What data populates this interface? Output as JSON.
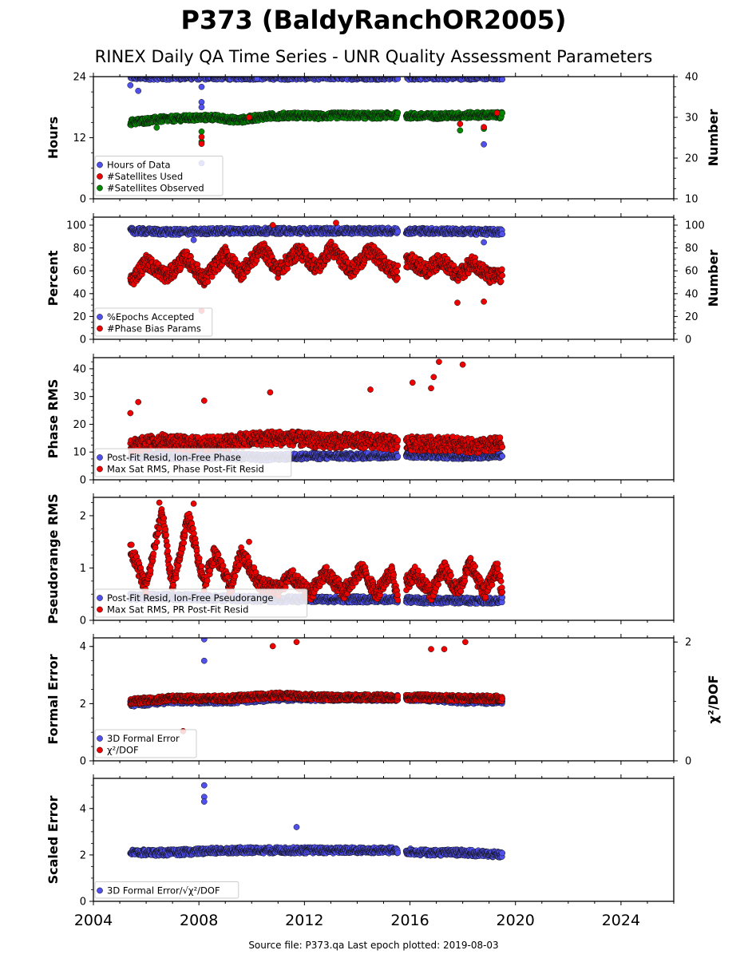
{
  "title": "P373 (BaldyRanchOR2005)",
  "subtitle": "RINEX Daily QA Time Series - UNR Quality Assessment Parameters",
  "footer": "Source file: P373.qa Last epoch plotted: 2019-08-03",
  "colors": {
    "blue": "#5050ee",
    "red": "#ee0000",
    "green": "#008800",
    "edge": "#111111"
  },
  "chart_data": [
    {
      "type": "scatter",
      "ylabel": "Hours",
      "ylabel_right": "Number",
      "ylim": [
        0,
        24
      ],
      "yticks": [
        "0",
        "12",
        "24"
      ],
      "ylim_right": [
        10,
        40
      ],
      "yticks_right": [
        "10",
        "20",
        "30",
        "40"
      ],
      "xlim": [
        2004,
        2026
      ],
      "legend": [
        "Hours of Data",
        "#Satellites Used",
        "#Satellites Observed"
      ],
      "legend_loc": "lower-left",
      "series": [
        {
          "name": "Hours of Data",
          "color": "blue",
          "axis": "left",
          "x": [
            2005.4,
            2007.5,
            2011.0,
            2014.0,
            2015.5,
            2016.5,
            2018.0,
            2019.5
          ],
          "y": [
            24,
            24,
            24,
            24,
            24,
            24,
            24,
            24
          ],
          "outliers": [
            [
              2005.4,
              22.3
            ],
            [
              2005.7,
              21.2
            ],
            [
              2008.1,
              22
            ],
            [
              2008.1,
              19
            ],
            [
              2008.1,
              18
            ],
            [
              2008.1,
              7
            ],
            [
              2010.2,
              23.6
            ],
            [
              2018.8,
              10.7
            ]
          ]
        },
        {
          "name": "#Satellites Observed",
          "color": "green",
          "axis": "right",
          "x": [
            2005.4,
            2006.5,
            2007.5,
            2008.5,
            2009.5,
            2010.5,
            2011.5,
            2012.5,
            2013.5,
            2014.5,
            2015.5,
            2016.5,
            2017.5,
            2018.5,
            2019.5
          ],
          "y": [
            28.8,
            29.5,
            29.8,
            30,
            29.3,
            30.2,
            30.5,
            30.3,
            30.5,
            30.4,
            30.5,
            30.3,
            30.4,
            30.6,
            30.5
          ],
          "outliers": [
            [
              2006.4,
              27.5
            ],
            [
              2008.1,
              26.5
            ],
            [
              2008.1,
              24
            ],
            [
              2017.9,
              26.8
            ],
            [
              2018.8,
              27.2
            ]
          ]
        },
        {
          "name": "#Satellites Used",
          "color": "red",
          "axis": "right",
          "x": [],
          "y": [],
          "outliers": [
            [
              2008.1,
              25.2
            ],
            [
              2008.1,
              23.5
            ],
            [
              2009.9,
              30
            ],
            [
              2017.9,
              28.4
            ],
            [
              2018.8,
              27.6
            ],
            [
              2019.3,
              31.1
            ]
          ]
        }
      ]
    },
    {
      "type": "scatter",
      "ylabel": "Percent",
      "ylabel_right": "Number",
      "ylim": [
        0,
        107
      ],
      "yticks": [
        "0",
        "20",
        "40",
        "60",
        "80",
        "100"
      ],
      "ylim_right": [
        0,
        107
      ],
      "yticks_right": [
        "0",
        "20",
        "40",
        "60",
        "80",
        "100"
      ],
      "xlim": [
        2004,
        2026
      ],
      "legend": [
        "%Epochs Accepted",
        "#Phase Bias Params"
      ],
      "legend_loc": "lower-left",
      "series": [
        {
          "name": "%Epochs Accepted",
          "color": "blue",
          "axis": "left",
          "x": [
            2005.4,
            2007,
            2009,
            2011,
            2013,
            2015.5,
            2016.5,
            2019.5
          ],
          "y": [
            95,
            94,
            95,
            95,
            95,
            95,
            95,
            94
          ],
          "outliers": [
            [
              2007.8,
              87
            ],
            [
              2018.8,
              85
            ]
          ]
        },
        {
          "name": "#Phase Bias Params",
          "color": "red",
          "axis": "left",
          "x": [
            2005.4,
            2006,
            2006.8,
            2007.5,
            2008.2,
            2009.0,
            2009.6,
            2010.4,
            2011.0,
            2011.8,
            2012.5,
            2013.0,
            2013.8,
            2014.5,
            2015.2,
            2015.5,
            2016.0,
            2016.6,
            2017.2,
            2017.8,
            2018.4,
            2019.0,
            2019.5
          ],
          "y": [
            50,
            68,
            55,
            72,
            52,
            75,
            58,
            80,
            60,
            78,
            62,
            80,
            60,
            78,
            62,
            58,
            70,
            60,
            70,
            55,
            68,
            55,
            55
          ],
          "outliers": [
            [
              2008.1,
              25
            ],
            [
              2010.8,
              100
            ],
            [
              2013.2,
              102
            ],
            [
              2017.8,
              32
            ],
            [
              2018.8,
              33
            ]
          ]
        }
      ]
    },
    {
      "type": "scatter",
      "ylabel": "Phase RMS",
      "ylim": [
        0,
        44
      ],
      "yticks": [
        "0",
        "10",
        "20",
        "30",
        "40"
      ],
      "xlim": [
        2004,
        2026
      ],
      "legend": [
        "Post-Fit Resid, Ion-Free Phase",
        "Max Sat RMS, Phase Post-Fit Resid"
      ],
      "legend_loc": "lower-left",
      "series": [
        {
          "name": "Post-Fit Resid, Ion-Free Phase",
          "color": "blue",
          "axis": "left",
          "x": [
            2005.4,
            2007,
            2009,
            2010.5,
            2012,
            2014,
            2015.5,
            2016.5,
            2018,
            2019.5
          ],
          "y": [
            8.5,
            8.5,
            8.5,
            8,
            8.5,
            8.5,
            9,
            9,
            8.5,
            9
          ],
          "outliers": []
        },
        {
          "name": "Max Sat RMS, Phase Post-Fit Resid",
          "color": "red",
          "axis": "left",
          "x": [
            2005.4,
            2006.5,
            2007.5,
            2008.5,
            2009.5,
            2010.5,
            2011.5,
            2012.5,
            2013.5,
            2014.5,
            2015.5,
            2016.5,
            2017.5,
            2018.5,
            2019.5
          ],
          "y": [
            12,
            14,
            13,
            13,
            14,
            15,
            15,
            14,
            14,
            14,
            13,
            13,
            13,
            12,
            13
          ],
          "outliers": [
            [
              2005.4,
              24
            ],
            [
              2005.7,
              28
            ],
            [
              2008.2,
              28.5
            ],
            [
              2010.7,
              31.5
            ],
            [
              2014.5,
              32.5
            ],
            [
              2016.1,
              35
            ],
            [
              2016.8,
              33
            ],
            [
              2017.1,
              42.5
            ],
            [
              2018.0,
              41.5
            ],
            [
              2016.9,
              37
            ]
          ]
        }
      ]
    },
    {
      "type": "scatter",
      "ylabel": "Pseudorange RMS",
      "ylim": [
        0,
        2.35
      ],
      "yticks": [
        "0",
        "1",
        "2"
      ],
      "xlim": [
        2004,
        2026
      ],
      "legend": [
        "Post-Fit Resid, Ion-Free Pseudorange",
        "Max Sat RMS, PR Post-Fit Resid"
      ],
      "legend_loc": "lower-left",
      "series": [
        {
          "name": "Post-Fit Resid, Ion-Free Pseudorange",
          "color": "blue",
          "axis": "left",
          "x": [
            2005.4,
            2007,
            2009,
            2011,
            2013,
            2015.5,
            2016.5,
            2018,
            2019.5
          ],
          "y": [
            0.45,
            0.45,
            0.42,
            0.4,
            0.4,
            0.4,
            0.38,
            0.38,
            0.38
          ],
          "outliers": [
            [
              2009.8,
              1.25
            ]
          ]
        },
        {
          "name": "Max Sat RMS, PR Post-Fit Resid",
          "color": "red",
          "axis": "left",
          "x": [
            2005.4,
            2006.0,
            2006.6,
            2007.0,
            2007.6,
            2008.2,
            2008.6,
            2009.2,
            2009.6,
            2010.3,
            2011.0,
            2011.5,
            2012.2,
            2012.8,
            2013.5,
            2014.2,
            2014.7,
            2015.3,
            2015.5,
            2016.2,
            2016.8,
            2017.3,
            2017.8,
            2018.3,
            2018.8,
            2019.3,
            2019.5
          ],
          "y": [
            1.4,
            0.6,
            2.1,
            0.6,
            2.0,
            0.7,
            1.3,
            0.6,
            1.3,
            0.7,
            0.6,
            0.85,
            0.5,
            0.9,
            0.55,
            1.0,
            0.5,
            0.95,
            0.5,
            0.9,
            0.5,
            1.0,
            0.55,
            1.1,
            0.5,
            1.0,
            0.55
          ],
          "outliers": [
            [
              2006.5,
              2.25
            ],
            [
              2007.8,
              2.23
            ],
            [
              2009.9,
              1.5
            ]
          ]
        }
      ]
    },
    {
      "type": "scatter",
      "ylabel": "Formal Error",
      "ylabel_right": "χ²/DOF",
      "ylim": [
        0,
        4.3
      ],
      "yticks": [
        "0",
        "2",
        "4"
      ],
      "ylim_right": [
        0,
        2.07
      ],
      "yticks_right": [
        "0",
        "2"
      ],
      "xlim": [
        2004,
        2026
      ],
      "legend": [
        "3D Formal Error",
        "χ²/DOF"
      ],
      "legend_loc": "lower-left",
      "series": [
        {
          "name": "3D Formal Error",
          "color": "blue",
          "axis": "left",
          "x": [
            2005.4,
            2007,
            2009,
            2011,
            2013,
            2015.5,
            2016.5,
            2018,
            2019.5
          ],
          "y": [
            2.0,
            2.1,
            2.1,
            2.2,
            2.2,
            2.2,
            2.2,
            2.1,
            2.1
          ],
          "outliers": [
            [
              2008.2,
              4.25
            ],
            [
              2008.2,
              3.5
            ]
          ]
        },
        {
          "name": "χ²/DOF",
          "color": "red",
          "axis": "right",
          "x": [
            2005.4,
            2007,
            2009,
            2011,
            2013,
            2015.5,
            2016.5,
            2018,
            2019.5
          ],
          "y": [
            1.0,
            1.05,
            1.05,
            1.1,
            1.07,
            1.07,
            1.07,
            1.05,
            1.05
          ],
          "outliers": [
            [
              2010.8,
              1.93
            ],
            [
              2011.7,
              2.0
            ],
            [
              2016.8,
              1.88
            ],
            [
              2017.3,
              1.88
            ],
            [
              2018.1,
              2.0
            ],
            [
              2007.4,
              0.5
            ]
          ]
        }
      ]
    },
    {
      "type": "scatter",
      "ylabel": "Scaled Error",
      "ylim": [
        0,
        5.3
      ],
      "yticks": [
        "0",
        "2",
        "4"
      ],
      "xlim": [
        2004,
        2026
      ],
      "xticks": [
        "2004",
        "2008",
        "2012",
        "2016",
        "2020",
        "2024"
      ],
      "legend": [
        "3D Formal Error/√χ²/DOF"
      ],
      "legend_loc": "lower-left",
      "series": [
        {
          "name": "3D Formal Error/√χ²/DOF",
          "color": "blue",
          "axis": "left",
          "x": [
            2005.4,
            2007,
            2009,
            2011,
            2013,
            2015.5,
            2016.5,
            2018,
            2019.5
          ],
          "y": [
            2.1,
            2.1,
            2.2,
            2.2,
            2.2,
            2.2,
            2.1,
            2.1,
            2.0
          ],
          "outliers": [
            [
              2008.2,
              5.0
            ],
            [
              2008.2,
              4.5
            ],
            [
              2008.2,
              4.3
            ],
            [
              2011.7,
              3.2
            ]
          ]
        }
      ]
    }
  ]
}
